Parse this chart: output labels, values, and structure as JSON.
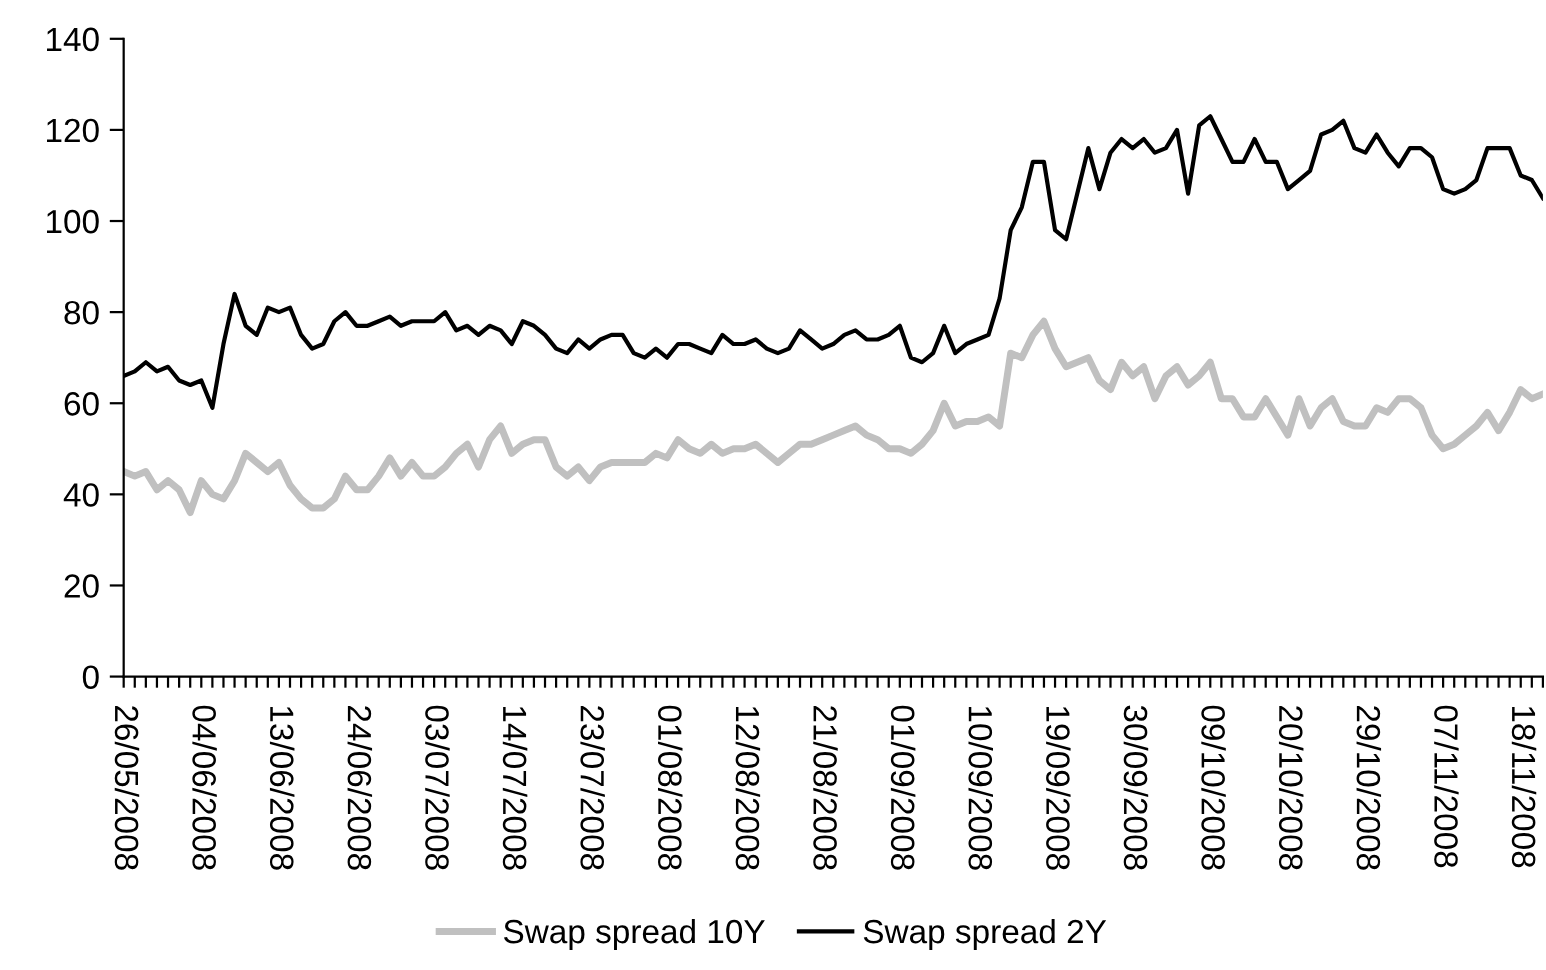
{
  "chart_data": {
    "type": "line",
    "categories": [
      "26/05/2008",
      null,
      null,
      null,
      null,
      null,
      null,
      "04/06/2008",
      null,
      null,
      null,
      null,
      null,
      null,
      "13/06/2008",
      null,
      null,
      null,
      null,
      null,
      null,
      "24/06/2008",
      null,
      null,
      null,
      null,
      null,
      null,
      "03/07/2008",
      null,
      null,
      null,
      null,
      null,
      null,
      "14/07/2008",
      null,
      null,
      null,
      null,
      null,
      null,
      "23/07/2008",
      null,
      null,
      null,
      null,
      null,
      null,
      "01/08/2008",
      null,
      null,
      null,
      null,
      null,
      null,
      "12/08/2008",
      null,
      null,
      null,
      null,
      null,
      null,
      "21/08/2008",
      null,
      null,
      null,
      null,
      null,
      null,
      "01/09/2008",
      null,
      null,
      null,
      null,
      null,
      null,
      "10/09/2008",
      null,
      null,
      null,
      null,
      null,
      null,
      "19/09/2008",
      null,
      null,
      null,
      null,
      null,
      null,
      "30/09/2008",
      null,
      null,
      null,
      null,
      null,
      null,
      "09/10/2008",
      null,
      null,
      null,
      null,
      null,
      null,
      "20/10/2008",
      null,
      null,
      null,
      null,
      null,
      null,
      "29/10/2008",
      null,
      null,
      null,
      null,
      null,
      null,
      "07/11/2008",
      null,
      null,
      null,
      null,
      null,
      null,
      "18/11/2008",
      null,
      null
    ],
    "series": [
      {
        "name": "Swap spread 10Y",
        "color": "#c0c0c0",
        "values": [
          45,
          44,
          45,
          41,
          43,
          41,
          36,
          43,
          40,
          39,
          43,
          49,
          47,
          45,
          47,
          42,
          39,
          37,
          37,
          39,
          44,
          41,
          41,
          44,
          48,
          44,
          47,
          44,
          44,
          46,
          49,
          51,
          46,
          52,
          55,
          49,
          51,
          52,
          52,
          46,
          44,
          46,
          43,
          46,
          47,
          47,
          47,
          47,
          49,
          48,
          52,
          50,
          49,
          51,
          49,
          50,
          50,
          51,
          49,
          47,
          49,
          51,
          51,
          52,
          53,
          54,
          55,
          53,
          52,
          50,
          50,
          49,
          51,
          54,
          60,
          55,
          56,
          56,
          57,
          55,
          71,
          70,
          75,
          78,
          72,
          68,
          69,
          70,
          65,
          63,
          69,
          66,
          68,
          61,
          66,
          68,
          64,
          66,
          69,
          61,
          61,
          57,
          57,
          61,
          57,
          53,
          61,
          55,
          59,
          61,
          56,
          55,
          55,
          59,
          58,
          61,
          61,
          59,
          53,
          50,
          51,
          53,
          55,
          58,
          54,
          58,
          63,
          61,
          62
        ]
      },
      {
        "name": "Swap spread 2Y",
        "color": "#000000",
        "values": [
          66,
          67,
          69,
          67,
          68,
          65,
          64,
          65,
          59,
          73,
          84,
          77,
          75,
          81,
          80,
          81,
          75,
          72,
          73,
          78,
          80,
          77,
          77,
          78,
          79,
          77,
          78,
          78,
          78,
          80,
          76,
          77,
          75,
          77,
          76,
          73,
          78,
          77,
          75,
          72,
          71,
          74,
          72,
          74,
          75,
          75,
          71,
          70,
          72,
          70,
          73,
          73,
          72,
          71,
          75,
          73,
          73,
          74,
          72,
          71,
          72,
          76,
          74,
          72,
          73,
          75,
          76,
          74,
          74,
          75,
          77,
          70,
          69,
          71,
          77,
          71,
          73,
          74,
          75,
          83,
          98,
          103,
          113,
          113,
          98,
          96,
          106,
          116,
          107,
          115,
          118,
          116,
          118,
          115,
          116,
          120,
          106,
          121,
          123,
          118,
          113,
          113,
          118,
          113,
          113,
          107,
          109,
          111,
          119,
          120,
          122,
          116,
          115,
          119,
          115,
          112,
          116,
          116,
          114,
          107,
          106,
          107,
          109,
          116,
          116,
          116,
          110,
          109,
          105
        ]
      }
    ],
    "ylim": [
      0,
      140
    ],
    "yticks": [
      0,
      20,
      40,
      60,
      80,
      100,
      120,
      140
    ],
    "grid": false,
    "legend": "bottom",
    "marker": "none",
    "line_style": "solid"
  }
}
